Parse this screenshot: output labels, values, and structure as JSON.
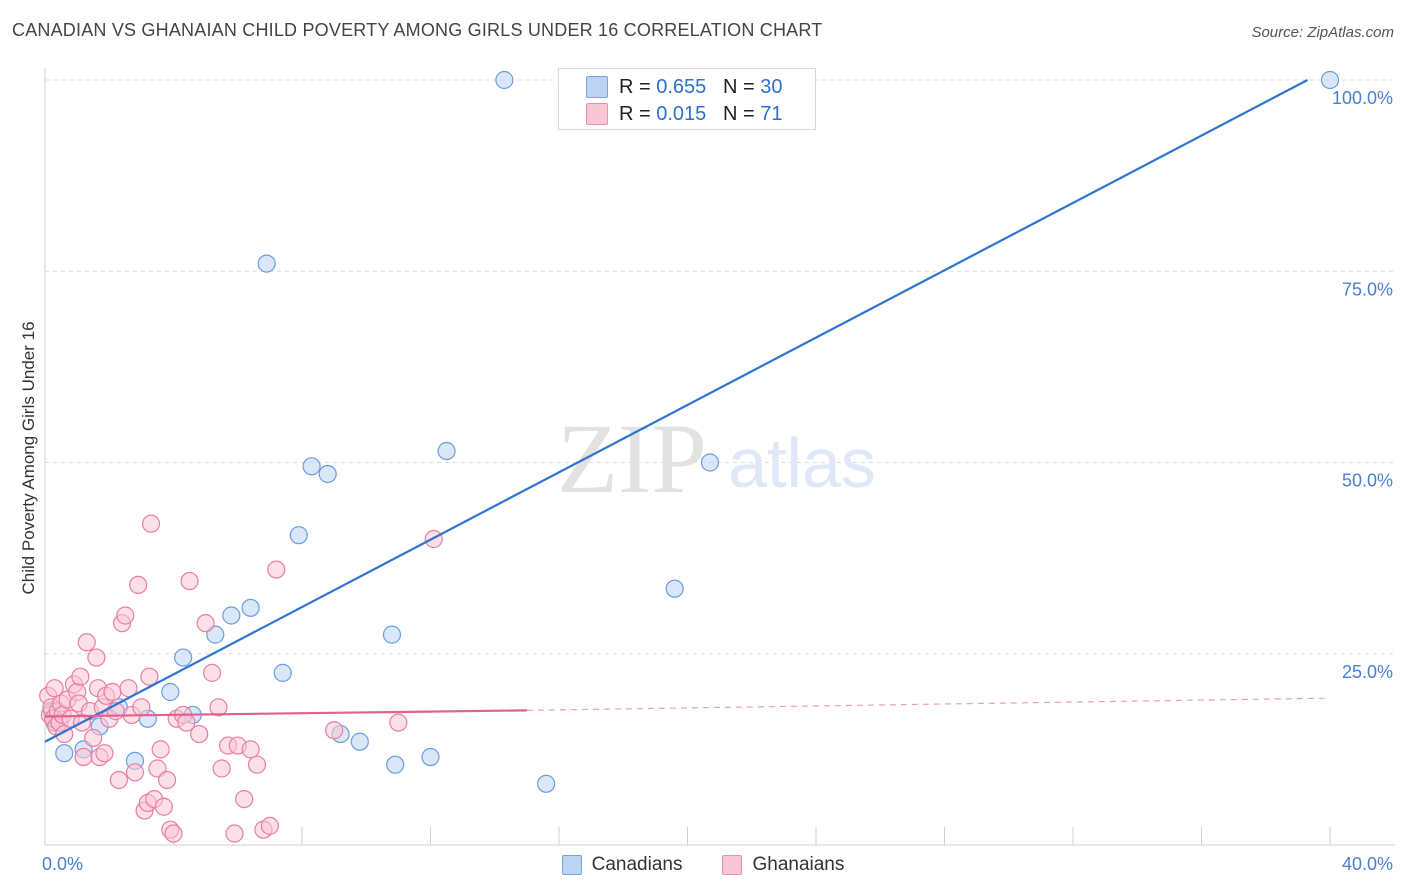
{
  "header": {
    "title": "CANADIAN VS GHANAIAN CHILD POVERTY AMONG GIRLS UNDER 16 CORRELATION CHART",
    "source": "Source: ZipAtlas.com"
  },
  "watermark": {
    "zip": "ZIP",
    "atlas": "atlas"
  },
  "stats_legend": [
    {
      "r_label": "R = ",
      "r_value": "0.655",
      "n_label": "N = ",
      "n_value": "30",
      "color": "#bcd3f3"
    },
    {
      "r_label": "R = ",
      "r_value": "0.015",
      "n_label": "N = ",
      "n_value": "71",
      "color": "#f9c6d5"
    }
  ],
  "bottom_legend": [
    {
      "label": "Canadians",
      "color": "#bcd3f3"
    },
    {
      "label": "Ghanaians",
      "color": "#f9c6d5"
    }
  ],
  "chart_data": {
    "type": "scatter",
    "title": "CANADIAN VS GHANAIAN CHILD POVERTY AMONG GIRLS UNDER 16 CORRELATION CHART",
    "xlabel": "",
    "ylabel": "Child Poverty Among Girls Under 16",
    "xlim": [
      0,
      40
    ],
    "ylim": [
      0,
      100
    ],
    "x_tick_labels": [
      "0.0%",
      "40.0%"
    ],
    "y_ticks": [
      25,
      50,
      75,
      100
    ],
    "y_tick_labels": [
      "25.0%",
      "50.0%",
      "75.0%",
      "100.0%"
    ],
    "grid": true,
    "series": [
      {
        "name": "Canadians",
        "color": "#6a9de0",
        "fill": "#bcd3f3",
        "points": [
          [
            0.2,
            17.5
          ],
          [
            0.3,
            16.0
          ],
          [
            0.6,
            12.0
          ],
          [
            1.2,
            12.5
          ],
          [
            1.7,
            15.5
          ],
          [
            2.3,
            18.0
          ],
          [
            2.8,
            11.0
          ],
          [
            3.2,
            16.5
          ],
          [
            3.9,
            20.0
          ],
          [
            4.3,
            24.5
          ],
          [
            4.6,
            17.0
          ],
          [
            5.3,
            27.5
          ],
          [
            5.8,
            30.0
          ],
          [
            6.4,
            31.0
          ],
          [
            6.9,
            76.0
          ],
          [
            7.4,
            22.5
          ],
          [
            7.9,
            40.5
          ],
          [
            8.3,
            49.5
          ],
          [
            8.8,
            48.5
          ],
          [
            9.2,
            14.5
          ],
          [
            9.8,
            13.5
          ],
          [
            10.9,
            10.5
          ],
          [
            10.8,
            27.5
          ],
          [
            12.0,
            11.5
          ],
          [
            12.5,
            51.5
          ],
          [
            14.3,
            100.0
          ],
          [
            15.6,
            8.0
          ],
          [
            19.6,
            33.5
          ],
          [
            20.7,
            50.0
          ],
          [
            40.0,
            100.0
          ]
        ],
        "trendline": {
          "x": [
            0,
            39.3
          ],
          "y": [
            13.5,
            100.0
          ]
        }
      },
      {
        "name": "Ghanaians",
        "color": "#e87ea2",
        "fill": "#f9c6d5",
        "points": [
          [
            0.1,
            19.5
          ],
          [
            0.15,
            17.0
          ],
          [
            0.2,
            18.0
          ],
          [
            0.25,
            16.5
          ],
          [
            0.3,
            20.5
          ],
          [
            0.35,
            15.5
          ],
          [
            0.4,
            17.5
          ],
          [
            0.45,
            16.0
          ],
          [
            0.5,
            18.5
          ],
          [
            0.55,
            17.0
          ],
          [
            0.6,
            14.5
          ],
          [
            0.7,
            19.0
          ],
          [
            0.8,
            16.5
          ],
          [
            0.9,
            21.0
          ],
          [
            1.0,
            20.0
          ],
          [
            1.05,
            18.5
          ],
          [
            1.1,
            22.0
          ],
          [
            1.15,
            16.0
          ],
          [
            1.2,
            11.5
          ],
          [
            1.3,
            26.5
          ],
          [
            1.4,
            17.5
          ],
          [
            1.5,
            14.0
          ],
          [
            1.6,
            24.5
          ],
          [
            1.65,
            20.5
          ],
          [
            1.7,
            11.5
          ],
          [
            1.8,
            18.0
          ],
          [
            1.85,
            12.0
          ],
          [
            1.9,
            19.5
          ],
          [
            2.0,
            16.5
          ],
          [
            2.1,
            20.0
          ],
          [
            2.2,
            17.5
          ],
          [
            2.3,
            8.5
          ],
          [
            2.4,
            29.0
          ],
          [
            2.5,
            30.0
          ],
          [
            2.6,
            20.5
          ],
          [
            2.7,
            17.0
          ],
          [
            2.8,
            9.5
          ],
          [
            2.9,
            34.0
          ],
          [
            3.0,
            18.0
          ],
          [
            3.1,
            4.5
          ],
          [
            3.2,
            5.5
          ],
          [
            3.25,
            22.0
          ],
          [
            3.3,
            42.0
          ],
          [
            3.4,
            6.0
          ],
          [
            3.5,
            10.0
          ],
          [
            3.6,
            12.5
          ],
          [
            3.7,
            5.0
          ],
          [
            3.8,
            8.5
          ],
          [
            3.9,
            2.0
          ],
          [
            4.0,
            1.5
          ],
          [
            4.1,
            16.5
          ],
          [
            4.3,
            17.0
          ],
          [
            4.4,
            16.0
          ],
          [
            4.5,
            34.5
          ],
          [
            4.8,
            14.5
          ],
          [
            5.0,
            29.0
          ],
          [
            5.2,
            22.5
          ],
          [
            5.4,
            18.0
          ],
          [
            5.5,
            10.0
          ],
          [
            5.7,
            13.0
          ],
          [
            5.9,
            1.5
          ],
          [
            6.0,
            13.0
          ],
          [
            6.2,
            6.0
          ],
          [
            6.4,
            12.5
          ],
          [
            6.6,
            10.5
          ],
          [
            6.8,
            2.0
          ],
          [
            7.0,
            2.5
          ],
          [
            7.2,
            36.0
          ],
          [
            9.0,
            15.0
          ],
          [
            11.0,
            16.0
          ],
          [
            12.1,
            40.0
          ]
        ],
        "trendline": {
          "x": [
            0,
            15.0
          ],
          "y": [
            16.8,
            17.6
          ]
        },
        "trendline_dashed": {
          "x": [
            15.0,
            40.0
          ],
          "y": [
            17.6,
            19.2
          ]
        }
      }
    ]
  }
}
